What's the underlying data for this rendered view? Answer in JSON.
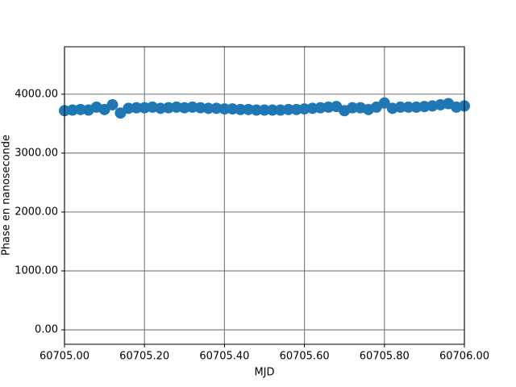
{
  "chart_data": {
    "type": "scatter",
    "xlabel": "MJD",
    "ylabel": "Phase en nanoseconde",
    "xlim": [
      60705.0,
      60706.0
    ],
    "xticks": [
      {
        "value": 60705.0,
        "label": "60705.00"
      },
      {
        "value": 60705.2,
        "label": "60705.20"
      },
      {
        "value": 60705.4,
        "label": "60705.40"
      },
      {
        "value": 60705.6,
        "label": "60705.60"
      },
      {
        "value": 60705.8,
        "label": "60705.80"
      },
      {
        "value": 60706.0,
        "label": "60706.00"
      }
    ],
    "ylim": [
      -245,
      4805
    ],
    "yticks": [
      {
        "value": 0,
        "label": "0.00"
      },
      {
        "value": 1000,
        "label": "1000.00"
      },
      {
        "value": 2000,
        "label": "2000.00"
      },
      {
        "value": 3000,
        "label": "3000.00"
      },
      {
        "value": 4000,
        "label": "4000.00"
      }
    ],
    "grid": true,
    "series": [
      {
        "color": "#1f77b4",
        "x": [
          60705.0,
          60705.02,
          60705.04,
          60705.06,
          60705.08,
          60705.1,
          60705.12,
          60705.14,
          60705.16,
          60705.18,
          60705.2,
          60705.22,
          60705.24,
          60705.26,
          60705.28,
          60705.3,
          60705.32,
          60705.34,
          60705.36,
          60705.38,
          60705.4,
          60705.42,
          60705.44,
          60705.46,
          60705.48,
          60705.5,
          60705.52,
          60705.54,
          60705.56,
          60705.58,
          60705.6,
          60705.62,
          60705.64,
          60705.66,
          60705.68,
          60705.7,
          60705.72,
          60705.74,
          60705.76,
          60705.78,
          60705.8,
          60705.82,
          60705.84,
          60705.86,
          60705.88,
          60705.9,
          60705.92,
          60705.94,
          60705.96,
          60705.98,
          60706.0
        ],
        "values": [
          3720,
          3730,
          3740,
          3730,
          3780,
          3740,
          3820,
          3680,
          3760,
          3770,
          3770,
          3780,
          3760,
          3770,
          3780,
          3770,
          3780,
          3770,
          3760,
          3760,
          3750,
          3750,
          3740,
          3740,
          3730,
          3730,
          3730,
          3730,
          3740,
          3740,
          3750,
          3760,
          3770,
          3780,
          3790,
          3720,
          3770,
          3770,
          3740,
          3780,
          3850,
          3760,
          3780,
          3780,
          3780,
          3790,
          3800,
          3820,
          3840,
          3780,
          3800
        ]
      }
    ]
  }
}
